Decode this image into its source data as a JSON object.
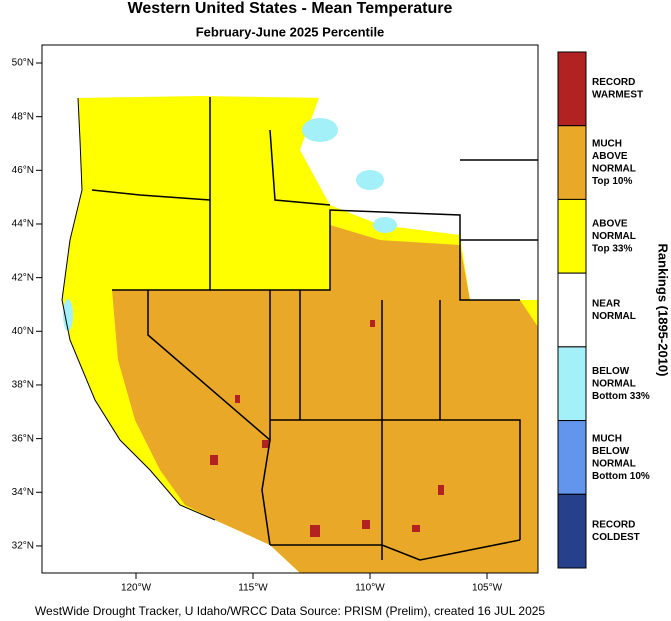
{
  "map": {
    "title": "Western United States - Mean Temperature",
    "subtitle": "February-June 2025 Percentile",
    "lat_ticks": [
      {
        "value": 50,
        "label": "50°N"
      },
      {
        "value": 48,
        "label": "48°N"
      },
      {
        "value": 46,
        "label": "46°N"
      },
      {
        "value": 44,
        "label": "44°N"
      },
      {
        "value": 42,
        "label": "42°N"
      },
      {
        "value": 40,
        "label": "40°N"
      },
      {
        "value": 38,
        "label": "38°N"
      },
      {
        "value": 36,
        "label": "36°N"
      },
      {
        "value": 34,
        "label": "34°N"
      },
      {
        "value": 32,
        "label": "32°N"
      }
    ],
    "lon_ticks": [
      {
        "value": -120,
        "label": "120°W"
      },
      {
        "value": -115,
        "label": "115°W"
      },
      {
        "value": -110,
        "label": "110°W"
      },
      {
        "value": -105,
        "label": "105°W"
      }
    ],
    "legend": {
      "title": "Rankings (1895-2010)",
      "items": [
        {
          "lines": [
            "RECORD",
            "WARMEST"
          ],
          "color": "#b22222"
        },
        {
          "lines": [
            "MUCH",
            "ABOVE",
            "NORMAL",
            "Top 10%"
          ],
          "color": "#eaa828"
        },
        {
          "lines": [
            "ABOVE",
            "NORMAL",
            "Top 33%"
          ],
          "color": "#ffff00"
        },
        {
          "lines": [
            "NEAR",
            "NORMAL"
          ],
          "color": "#ffffff"
        },
        {
          "lines": [
            "BELOW",
            "NORMAL",
            "Bottom 33%"
          ],
          "color": "#a4f0f8"
        },
        {
          "lines": [
            "MUCH",
            "BELOW",
            "NORMAL",
            "Bottom 10%"
          ],
          "color": "#6495ed"
        },
        {
          "lines": [
            "RECORD",
            "COLDEST"
          ],
          "color": "#27408b"
        }
      ]
    },
    "credit": "WestWide Drought Tracker, U Idaho/WRCC Data Source: PRISM (Prelim), created 16 JUL 2025"
  }
}
